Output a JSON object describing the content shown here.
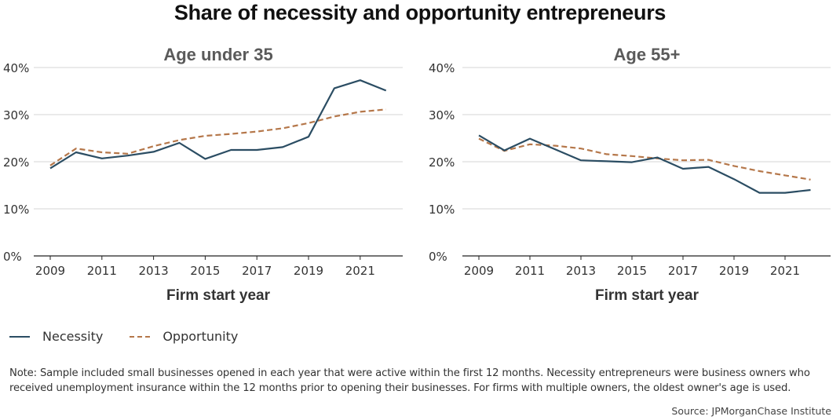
{
  "title": "Share of necessity and opportunity entrepreneurs",
  "legend": [
    {
      "name": "Necessity",
      "color": "#2b4d63",
      "style": "solid"
    },
    {
      "name": "Opportunity",
      "color": "#b5774a",
      "style": "dashed"
    }
  ],
  "note": "Note: Sample included small businesses opened in each year that were active within the first 12 months. Necessity entrepreneurs were business owners who received unemployment insurance within the 12 months prior to opening their businesses. For firms with multiple owners, the oldest owner's age is used.",
  "source": "Source: JPMorganChase Institute",
  "chart_data": [
    {
      "type": "line",
      "title": "Age under 35",
      "xlabel": "Firm start year",
      "ylabel": "",
      "x": [
        2009,
        2010,
        2011,
        2012,
        2013,
        2014,
        2015,
        2016,
        2017,
        2018,
        2019,
        2020,
        2021,
        2022
      ],
      "xticks": [
        "2009",
        "2011",
        "2013",
        "2015",
        "2017",
        "2019",
        "2021"
      ],
      "yticks": [
        "0%",
        "10%",
        "20%",
        "30%",
        "40%"
      ],
      "ylim": [
        0,
        40
      ],
      "grid": true,
      "series": [
        {
          "name": "Necessity",
          "values": [
            18.6,
            22.0,
            20.7,
            21.3,
            22.1,
            24.0,
            20.6,
            22.5,
            22.5,
            23.1,
            25.3,
            35.6,
            37.3,
            35.1
          ]
        },
        {
          "name": "Opportunity",
          "values": [
            19.2,
            22.8,
            22.0,
            21.7,
            23.3,
            24.6,
            25.5,
            25.9,
            26.4,
            27.1,
            28.2,
            29.6,
            30.6,
            31.1
          ]
        }
      ]
    },
    {
      "type": "line",
      "title": "Age 55+",
      "xlabel": "Firm start year",
      "ylabel": "",
      "x": [
        2009,
        2010,
        2011,
        2012,
        2013,
        2014,
        2015,
        2016,
        2017,
        2018,
        2019,
        2020,
        2021,
        2022
      ],
      "xticks": [
        "2009",
        "2011",
        "2013",
        "2015",
        "2017",
        "2019",
        "2021"
      ],
      "yticks": [
        "0%",
        "10%",
        "20%",
        "30%",
        "40%"
      ],
      "ylim": [
        0,
        40
      ],
      "grid": true,
      "series": [
        {
          "name": "Necessity",
          "values": [
            25.6,
            22.4,
            24.9,
            22.6,
            20.3,
            20.1,
            19.9,
            20.9,
            18.5,
            18.9,
            16.3,
            13.4,
            13.4,
            14.0
          ]
        },
        {
          "name": "Opportunity",
          "values": [
            24.9,
            22.3,
            23.7,
            23.4,
            22.8,
            21.6,
            21.2,
            20.7,
            20.3,
            20.4,
            19.1,
            18.0,
            17.1,
            16.2
          ]
        }
      ]
    }
  ]
}
